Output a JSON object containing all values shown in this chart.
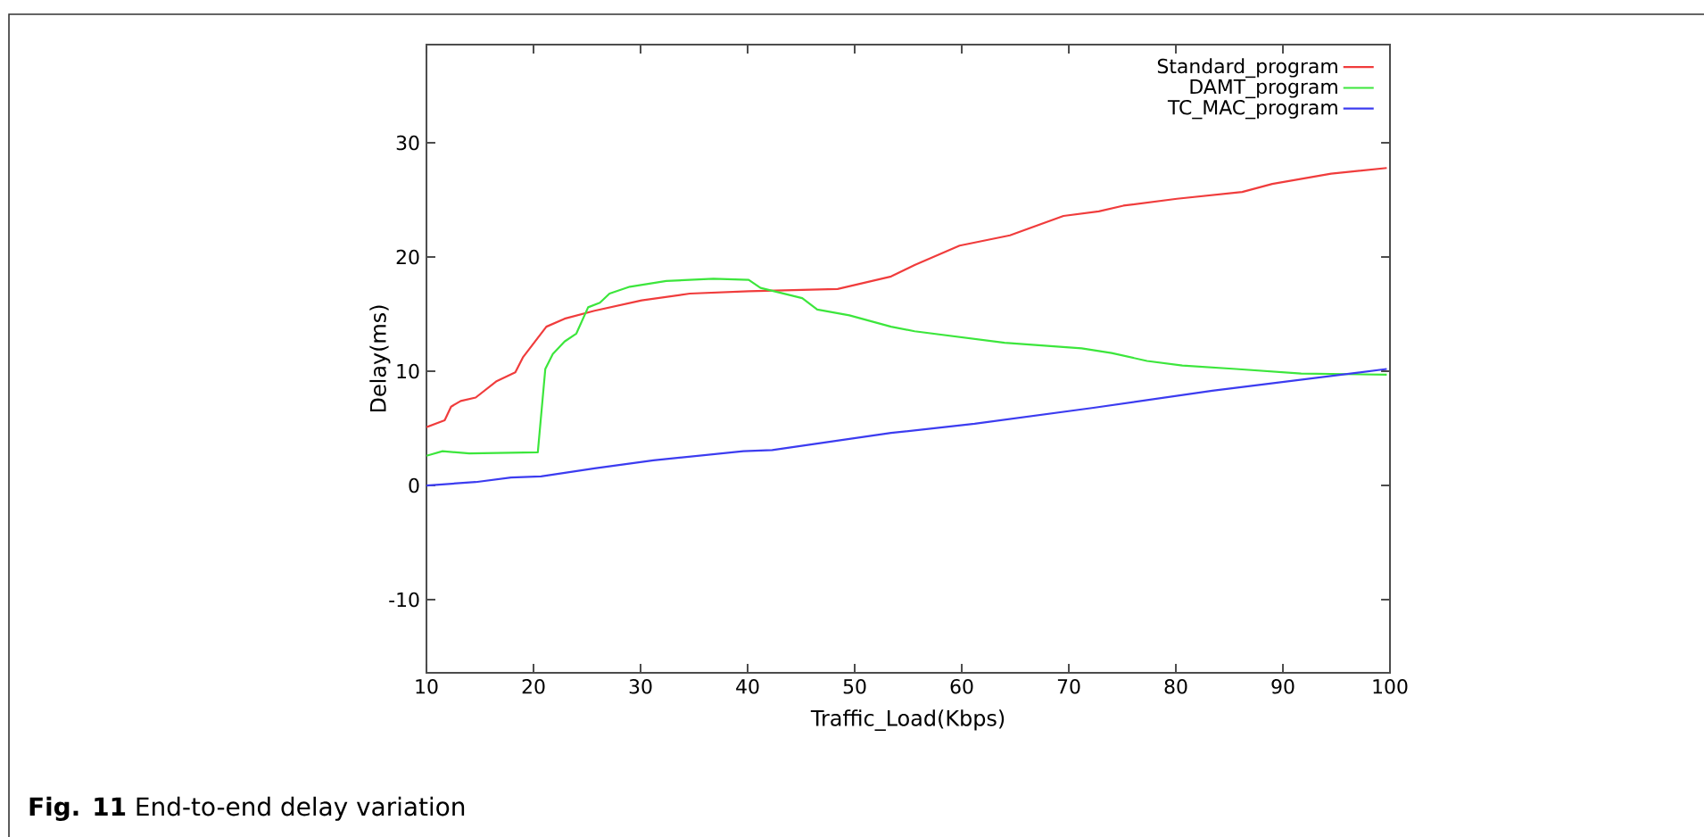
{
  "chart_data": {
    "type": "line",
    "xlabel": "Traffic_Load(Kbps)",
    "ylabel": "Delay(ms)",
    "annotations": [
      "**Fig. 11** End-to-end delay variation"
    ],
    "xlim": [
      10,
      100
    ],
    "ylim": [
      -16.4,
      38.6
    ],
    "xticks": [
      10,
      20,
      30,
      40,
      50,
      60,
      70,
      80,
      90,
      100
    ],
    "yticks": [
      -10,
      0,
      10,
      20,
      30
    ],
    "legend": "top right",
    "grid": false,
    "marker": "none",
    "line_style": "solid",
    "series": [
      {
        "name": "Standard_program",
        "color": "#f03c3c",
        "x": [
          10,
          11.7,
          12.3,
          13.2,
          14.6,
          16.5,
          18.3,
          19.0,
          21.2,
          22.9,
          25.7,
          30.1,
          34.6,
          40.1,
          48.4,
          53.4,
          55.6,
          59.8,
          64.5,
          69.5,
          72.8,
          75.1,
          80.1,
          86.2,
          89.0,
          94.5,
          99.7
        ],
        "values": [
          5.1,
          5.7,
          6.9,
          7.4,
          7.7,
          9.1,
          9.9,
          11.2,
          13.9,
          14.6,
          15.3,
          16.2,
          16.8,
          17.0,
          17.2,
          18.3,
          19.3,
          21.0,
          21.9,
          23.6,
          24.0,
          24.5,
          25.1,
          25.7,
          26.4,
          27.3,
          27.8
        ]
      },
      {
        "name": "DAMT_program",
        "color": "#3ce63c",
        "x": [
          10,
          11.5,
          14,
          20.4,
          21.1,
          21.8,
          22.9,
          24,
          25.1,
          26.2,
          27.1,
          29,
          32.4,
          36.8,
          40.1,
          41.2,
          45.1,
          46.5,
          49.5,
          53.4,
          55.6,
          64,
          71.2,
          74,
          77.3,
          80.6,
          85.6,
          91.7,
          99.7
        ],
        "values": [
          2.6,
          3.0,
          2.8,
          2.9,
          10.2,
          11.5,
          12.6,
          13.3,
          15.6,
          16.0,
          16.8,
          17.4,
          17.9,
          18.1,
          18.0,
          17.3,
          16.4,
          15.4,
          14.9,
          13.9,
          13.5,
          12.5,
          12.0,
          11.6,
          10.9,
          10.5,
          10.2,
          9.8,
          9.7
        ]
      },
      {
        "name": "TC_MAC_program",
        "color": "#3c3cf0",
        "x": [
          10,
          14.6,
          17.9,
          20.7,
          25.7,
          31.2,
          39.6,
          42.3,
          53.4,
          61.2,
          72.3,
          83.4,
          99.7
        ],
        "values": [
          0,
          0.3,
          0.7,
          0.8,
          1.5,
          2.2,
          3.0,
          3.1,
          4.6,
          5.4,
          6.8,
          8.3,
          10.2
        ]
      }
    ]
  }
}
